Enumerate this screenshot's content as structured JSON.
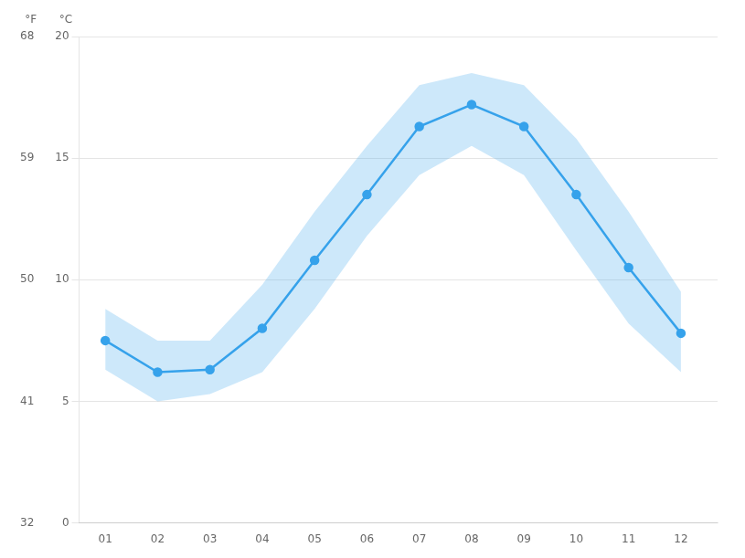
{
  "chart_data": {
    "type": "line",
    "x": [
      1,
      2,
      3,
      4,
      5,
      6,
      7,
      8,
      9,
      10,
      11,
      12
    ],
    "values": [
      7.5,
      6.2,
      6.3,
      8.0,
      10.8,
      13.5,
      16.3,
      17.2,
      16.3,
      13.5,
      10.5,
      7.8
    ],
    "band_low": [
      6.3,
      5.0,
      5.3,
      6.2,
      8.8,
      11.8,
      14.3,
      15.5,
      14.3,
      11.2,
      8.2,
      6.2
    ],
    "band_high": [
      8.8,
      7.5,
      7.5,
      9.8,
      12.8,
      15.5,
      18.0,
      18.5,
      18.0,
      15.8,
      12.8,
      9.5
    ],
    "xlim": [
      0.5,
      12.7
    ],
    "xticks": [
      {
        "value": 1,
        "label": "01"
      },
      {
        "value": 2,
        "label": "02"
      },
      {
        "value": 3,
        "label": "03"
      },
      {
        "value": 4,
        "label": "04"
      },
      {
        "value": 5,
        "label": "05"
      },
      {
        "value": 6,
        "label": "06"
      },
      {
        "value": 7,
        "label": "07"
      },
      {
        "value": 8,
        "label": "08"
      },
      {
        "value": 9,
        "label": "09"
      },
      {
        "value": 10,
        "label": "10"
      },
      {
        "value": 11,
        "label": "11"
      },
      {
        "value": 12,
        "label": "12"
      }
    ],
    "ylim": [
      0,
      20
    ],
    "yticks": [
      0,
      5,
      10,
      15,
      20
    ],
    "ylabel": "°C",
    "y2lim": [
      32,
      68
    ],
    "y2ticks": [
      32,
      41,
      50,
      59,
      68
    ],
    "y2label": "°F",
    "marker": "circle",
    "grid": true
  }
}
